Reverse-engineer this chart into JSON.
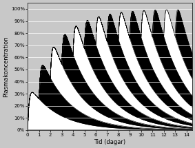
{
  "xlabel": "Tid (dagar)",
  "ylabel": "Plasmakoncentration",
  "xlim": [
    0,
    14.5
  ],
  "ylim": [
    0,
    1.05
  ],
  "yticks": [
    0,
    0.1,
    0.2,
    0.3,
    0.4,
    0.5,
    0.6,
    0.7,
    0.8,
    0.9,
    1.0
  ],
  "ytick_labels": [
    "0%",
    "10%",
    "20%",
    "30%",
    "40%",
    "50%",
    "60%",
    "70%",
    "80%",
    "90%",
    "100%"
  ],
  "xticks": [
    0,
    1,
    2,
    3,
    4,
    5,
    6,
    7,
    8,
    9,
    10,
    11,
    12,
    13,
    14
  ],
  "n_doses": 14,
  "dose_interval": 1.0,
  "ka": 8.0,
  "ke": 0.4,
  "background_color": "#c8c8c8",
  "plot_bg_color": "#c8c8c8",
  "line_color": "black",
  "figsize": [
    2.83,
    2.15
  ],
  "dpi": 100
}
